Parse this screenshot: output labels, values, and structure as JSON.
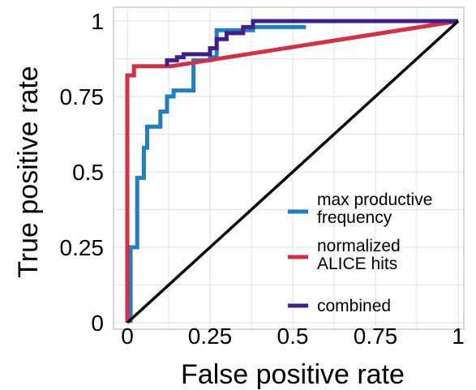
{
  "chart_data": {
    "type": "line",
    "xlabel": "False positive rate",
    "ylabel": "True positive rate",
    "xlim": [
      0,
      1
    ],
    "ylim": [
      0,
      1
    ],
    "grid": true,
    "legend_position": "bottom-right",
    "x_ticks": [
      {
        "value": 0,
        "label": "0"
      },
      {
        "value": 0.25,
        "label": "0.25"
      },
      {
        "value": 0.5,
        "label": "0.5"
      },
      {
        "value": 0.75,
        "label": "0.75"
      },
      {
        "value": 1,
        "label": "1"
      }
    ],
    "y_ticks": [
      {
        "value": 0,
        "label": "0"
      },
      {
        "value": 0.25,
        "label": "0.25"
      },
      {
        "value": 0.5,
        "label": "0.5"
      },
      {
        "value": 0.75,
        "label": "0.75"
      },
      {
        "value": 1,
        "label": "1"
      }
    ],
    "series": [
      {
        "name": "max productive\nfrequency",
        "color": "#1f7fc4",
        "points": [
          [
            0.01,
            0.0
          ],
          [
            0.01,
            0.25
          ],
          [
            0.03,
            0.25
          ],
          [
            0.03,
            0.48
          ],
          [
            0.05,
            0.48
          ],
          [
            0.05,
            0.58
          ],
          [
            0.06,
            0.58
          ],
          [
            0.06,
            0.65
          ],
          [
            0.1,
            0.65
          ],
          [
            0.1,
            0.7
          ],
          [
            0.12,
            0.7
          ],
          [
            0.12,
            0.75
          ],
          [
            0.14,
            0.75
          ],
          [
            0.14,
            0.77
          ],
          [
            0.2,
            0.77
          ],
          [
            0.2,
            0.87
          ],
          [
            0.25,
            0.87
          ],
          [
            0.25,
            0.88
          ],
          [
            0.27,
            0.88
          ],
          [
            0.27,
            0.97
          ],
          [
            0.38,
            0.97
          ],
          [
            0.38,
            0.98
          ],
          [
            0.54,
            0.98
          ]
        ]
      },
      {
        "name": "normalized\nALICE hits",
        "color": "#d62f42",
        "points": [
          [
            0.0,
            0.0
          ],
          [
            0.0,
            0.82
          ],
          [
            0.02,
            0.82
          ],
          [
            0.02,
            0.85
          ],
          [
            0.13,
            0.85
          ],
          [
            1.0,
            1.0
          ]
        ]
      },
      {
        "name": "combined",
        "color": "#3f1f8c",
        "points": [
          [
            0.12,
            0.85
          ],
          [
            0.12,
            0.87
          ],
          [
            0.15,
            0.87
          ],
          [
            0.15,
            0.88
          ],
          [
            0.17,
            0.88
          ],
          [
            0.17,
            0.89
          ],
          [
            0.25,
            0.89
          ],
          [
            0.25,
            0.91
          ],
          [
            0.27,
            0.91
          ],
          [
            0.27,
            0.94
          ],
          [
            0.3,
            0.94
          ],
          [
            0.3,
            0.96
          ],
          [
            0.35,
            0.96
          ],
          [
            0.35,
            0.98
          ],
          [
            0.38,
            0.98
          ],
          [
            0.38,
            1.0
          ],
          [
            1.0,
            1.0
          ]
        ]
      }
    ],
    "reference_line": {
      "color": "#000000",
      "points": [
        [
          0,
          0
        ],
        [
          1,
          1
        ]
      ]
    }
  }
}
